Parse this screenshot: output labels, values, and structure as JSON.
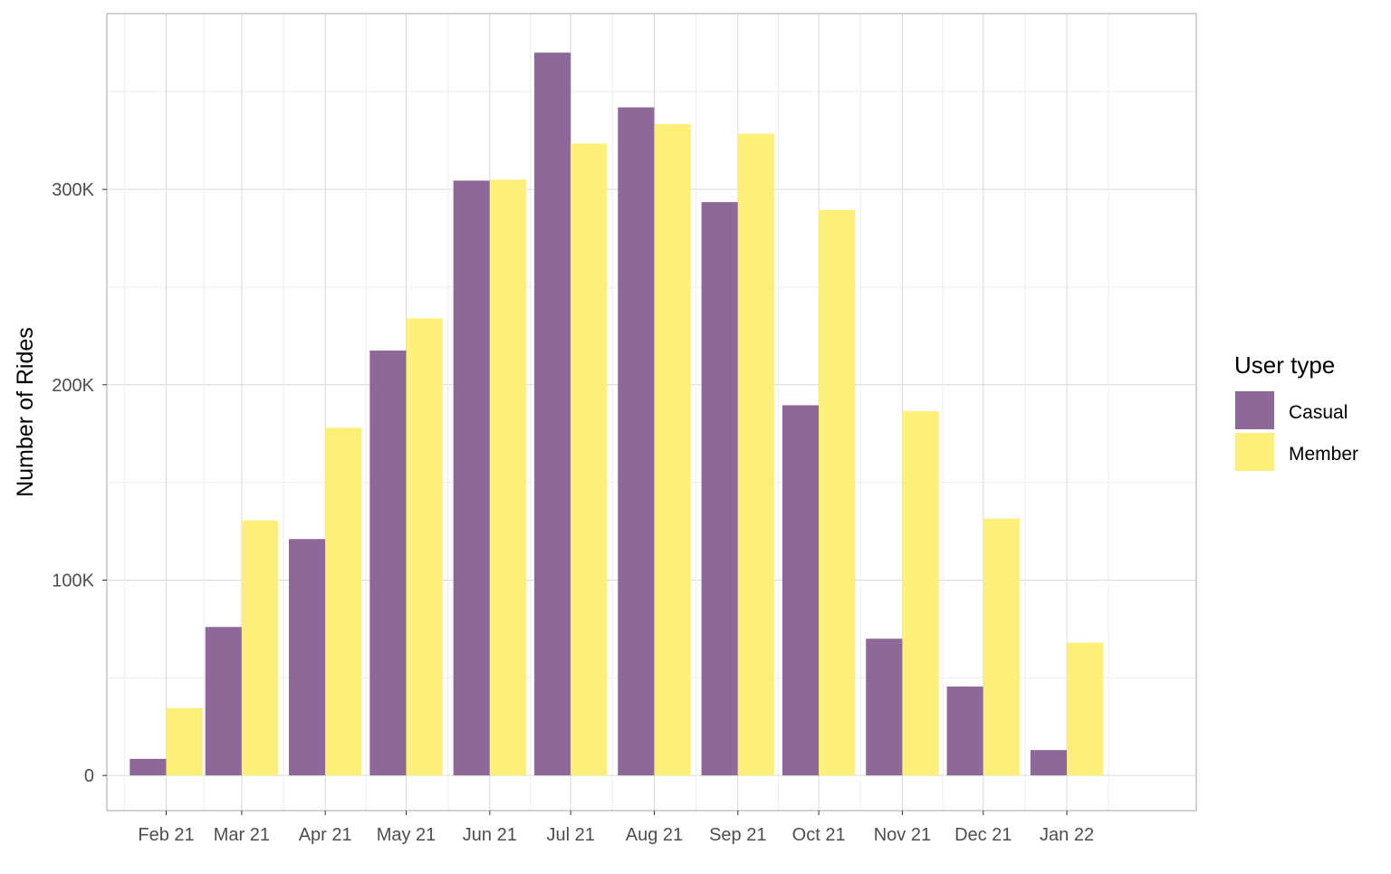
{
  "chart_data": {
    "type": "bar",
    "title": "",
    "xlabel": "",
    "ylabel": "Number of Rides",
    "ylim": [
      -18000,
      390000
    ],
    "y_ticks": [
      0,
      100000,
      200000,
      300000
    ],
    "y_tick_labels": [
      "0",
      "100K",
      "200K",
      "300K"
    ],
    "x_axis": "dates",
    "x_range": [
      "2021-01-10",
      "2022-02-18"
    ],
    "categories": [
      "Feb 21",
      "Mar 21",
      "Apr 21",
      "May 21",
      "Jun 21",
      "Jul 21",
      "Aug 21",
      "Sep 21",
      "Oct 21",
      "Nov 21",
      "Dec 21",
      "Jan 22"
    ],
    "category_dates": [
      "2021-02-01",
      "2021-03-01",
      "2021-04-01",
      "2021-05-01",
      "2021-06-01",
      "2021-07-01",
      "2021-08-01",
      "2021-09-01",
      "2021-10-01",
      "2021-11-01",
      "2021-12-01",
      "2022-01-01"
    ],
    "series": [
      {
        "name": "Casual",
        "color": "#8e6898",
        "values": [
          8500,
          76000,
          121000,
          217500,
          304500,
          370000,
          342000,
          293500,
          189500,
          70000,
          45500,
          13000
        ]
      },
      {
        "name": "Member",
        "color": "#fdf07a",
        "values": [
          34500,
          130500,
          178000,
          234000,
          305000,
          323500,
          333500,
          328500,
          289500,
          186500,
          131500,
          68000
        ]
      }
    ],
    "grid": true,
    "legend": {
      "title": "User type",
      "position": "right",
      "entries": [
        "Casual",
        "Member"
      ]
    },
    "colors": {
      "panel_border": "#b3b3b3",
      "grid_major": "#d9d9d9",
      "grid_minor": "#eeeeee"
    }
  }
}
